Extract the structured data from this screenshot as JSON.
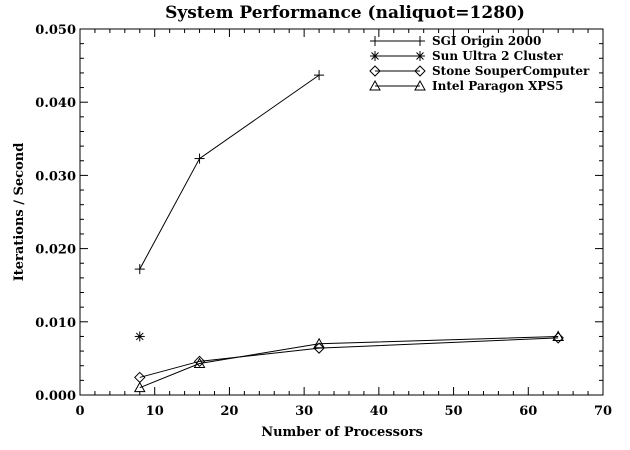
{
  "chart_data": {
    "type": "line",
    "title": "System Performance (naliquot=1280)",
    "xlabel": "Number of Processors",
    "ylabel": "Iterations / Second",
    "xlim": [
      0,
      70
    ],
    "ylim": [
      0,
      0.05
    ],
    "x_ticks": [
      0,
      10,
      20,
      30,
      40,
      50,
      60,
      70
    ],
    "x_tick_labels": [
      "0",
      "10",
      "20",
      "30",
      "40",
      "50",
      "60",
      "70"
    ],
    "y_ticks": [
      0,
      0.01,
      0.02,
      0.03,
      0.04,
      0.05
    ],
    "y_tick_labels": [
      "0.000",
      "0.010",
      "0.020",
      "0.030",
      "0.040",
      "0.050"
    ],
    "grid": false,
    "legend_position": "top-right",
    "series": [
      {
        "name": "SGI Origin 2000",
        "marker": "plus",
        "x": [
          8,
          16,
          32
        ],
        "y": [
          0.0172,
          0.0323,
          0.0437
        ]
      },
      {
        "name": "Sun Ultra 2 Cluster",
        "marker": "asterisk",
        "x": [
          8
        ],
        "y": [
          0.008
        ]
      },
      {
        "name": "Stone SouperComputer",
        "marker": "diamond",
        "x": [
          8,
          16,
          32,
          64
        ],
        "y": [
          0.0024,
          0.0046,
          0.0064,
          0.0078
        ]
      },
      {
        "name": "Intel Paragon XPS5",
        "marker": "triangle",
        "x": [
          8,
          16,
          32,
          64
        ],
        "y": [
          0.001,
          0.0043,
          0.007,
          0.008
        ]
      }
    ]
  }
}
